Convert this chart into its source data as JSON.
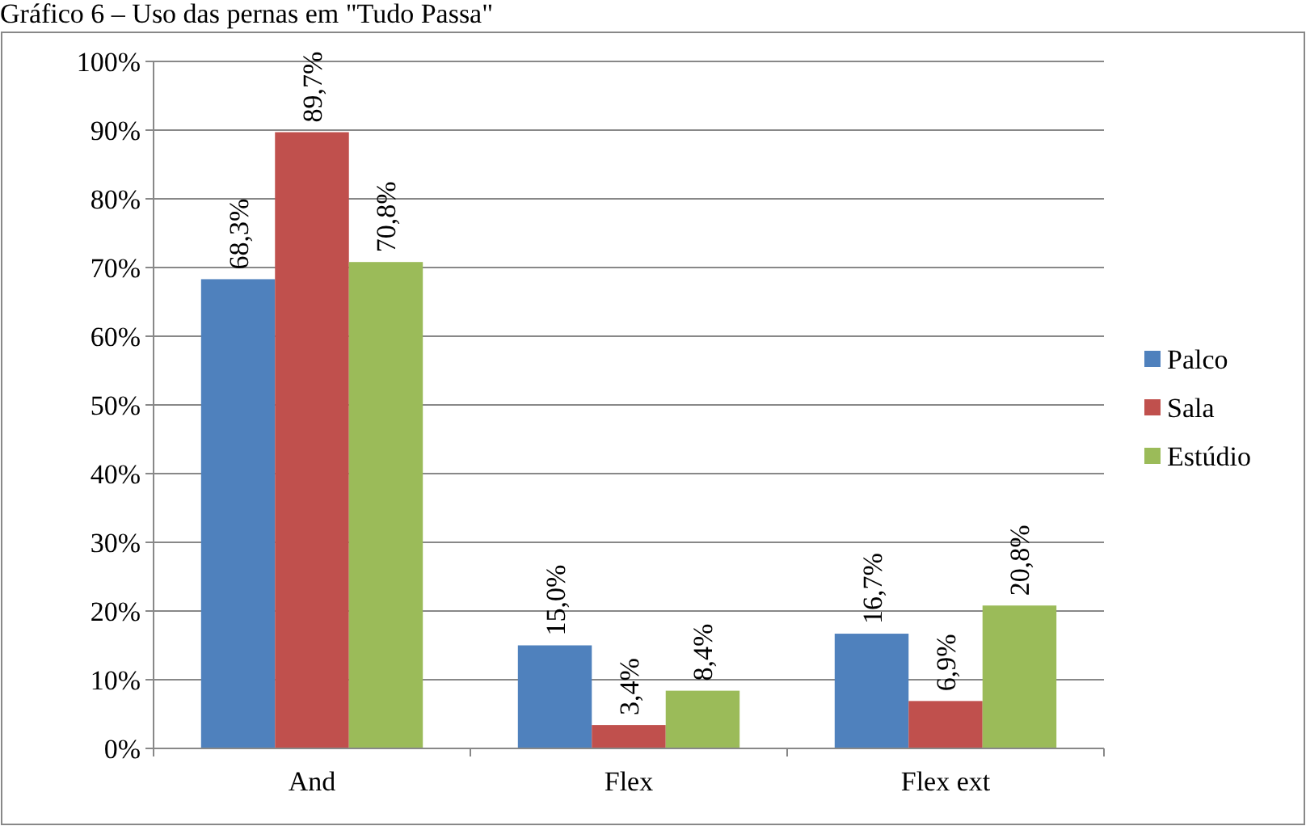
{
  "chart_data": {
    "type": "bar",
    "title": "Gráfico 6 – Uso das pernas em \"Tudo Passa\"",
    "categories": [
      "And",
      "Flex",
      "Flex ext"
    ],
    "series": [
      {
        "name": "Palco",
        "color": "#4f81bd",
        "values": [
          68.3,
          15.0,
          16.7
        ],
        "value_labels": [
          "68,3%",
          "15,0%",
          "16,7%"
        ]
      },
      {
        "name": "Sala",
        "color": "#c0504d",
        "values": [
          89.7,
          3.4,
          6.9
        ],
        "value_labels": [
          "89,7%",
          "3,4%",
          "6,9%"
        ]
      },
      {
        "name": "Estúdio",
        "color": "#9bbb59",
        "values": [
          70.8,
          8.4,
          20.8
        ],
        "value_labels": [
          "70,8%",
          "8,4%",
          "20,8%"
        ]
      }
    ],
    "ylim": [
      0,
      100
    ],
    "yticks": [
      {
        "value": 0,
        "label": "0%"
      },
      {
        "value": 10,
        "label": "10%"
      },
      {
        "value": 20,
        "label": "20%"
      },
      {
        "value": 30,
        "label": "30%"
      },
      {
        "value": 40,
        "label": "40%"
      },
      {
        "value": 50,
        "label": "50%"
      },
      {
        "value": 60,
        "label": "60%"
      },
      {
        "value": 70,
        "label": "70%"
      },
      {
        "value": 80,
        "label": "80%"
      },
      {
        "value": 90,
        "label": "90%"
      },
      {
        "value": 100,
        "label": "100%"
      }
    ],
    "grid": "y",
    "legend": "right"
  }
}
